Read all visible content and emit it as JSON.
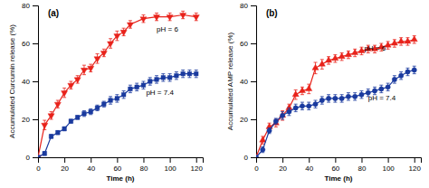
{
  "chart_data": [
    {
      "type": "line",
      "title": "(a)",
      "x_label": "Time (h)",
      "y_label": "Accumulated Curcumin release (%)",
      "xlim": [
        0,
        125
      ],
      "ylim": [
        0,
        80
      ],
      "xticks": [
        0,
        20,
        40,
        60,
        80,
        100,
        120
      ],
      "yticks": [
        0,
        20,
        40,
        60,
        80
      ],
      "series": [
        {
          "name": "pH = 6",
          "color": "#e8221a",
          "marker": "triangle-down",
          "x": [
            0,
            5,
            10,
            15,
            20,
            25,
            30,
            35,
            40,
            45,
            50,
            55,
            60,
            65,
            70,
            80,
            90,
            100,
            110,
            120
          ],
          "values": [
            0,
            17,
            22,
            28,
            34,
            38,
            41,
            46,
            47,
            52,
            55,
            60,
            64,
            66,
            70,
            73,
            74,
            74,
            75,
            74
          ],
          "errors": [
            0,
            2.5,
            2,
            2,
            2.5,
            2,
            2,
            2.5,
            2,
            2.5,
            2,
            2.5,
            2.5,
            2,
            2,
            2,
            2,
            2,
            2,
            2
          ]
        },
        {
          "name": "pH = 7.4",
          "color": "#1a3a9e",
          "marker": "square",
          "x": [
            0,
            5,
            10,
            15,
            20,
            25,
            30,
            35,
            40,
            45,
            50,
            55,
            60,
            65,
            70,
            75,
            80,
            85,
            90,
            95,
            100,
            105,
            110,
            115,
            120
          ],
          "values": [
            0,
            2,
            11,
            13,
            15,
            19,
            21,
            23,
            24,
            26,
            28,
            30,
            31,
            33,
            36,
            37,
            38,
            40,
            41,
            42,
            42,
            43,
            44,
            44,
            44
          ],
          "errors": [
            0,
            1,
            1,
            1,
            1,
            1,
            1,
            1.5,
            1.5,
            1.5,
            1.5,
            2,
            2,
            2,
            2,
            2,
            2,
            2,
            2,
            2,
            2,
            2,
            2,
            2,
            2
          ]
        }
      ],
      "annotations": [
        {
          "text": "pH = 6",
          "x": 90,
          "y": 66
        },
        {
          "text": "pH = 7.4",
          "x": 82,
          "y": 33
        }
      ]
    },
    {
      "type": "line",
      "title": "(b)",
      "x_label": "Time (h)",
      "y_label": "Accumulated AMP release (%)",
      "xlim": [
        0,
        125
      ],
      "ylim": [
        0,
        80
      ],
      "xticks": [
        0,
        20,
        40,
        60,
        80,
        100,
        120
      ],
      "yticks": [
        0,
        20,
        40,
        60,
        80
      ],
      "series": [
        {
          "name": "pH = 6",
          "color": "#e8221a",
          "marker": "triangle-up",
          "x": [
            0,
            5,
            10,
            15,
            20,
            25,
            30,
            35,
            40,
            45,
            50,
            55,
            60,
            65,
            70,
            75,
            80,
            85,
            90,
            95,
            100,
            105,
            110,
            115,
            120
          ],
          "values": [
            0,
            9,
            16,
            18,
            22,
            26,
            33,
            35,
            36,
            47,
            49,
            51,
            52,
            53,
            54,
            55,
            56,
            57,
            57,
            58,
            59,
            60,
            61,
            61,
            62
          ],
          "errors": [
            0,
            2,
            2,
            2,
            2.5,
            2,
            2.5,
            2,
            2.5,
            3,
            2.5,
            2,
            2,
            2,
            2,
            2,
            2,
            2,
            2,
            2,
            2,
            2,
            2,
            2,
            2
          ]
        },
        {
          "name": "pH = 7.4",
          "color": "#1a3a9e",
          "marker": "circle",
          "x": [
            0,
            5,
            10,
            15,
            20,
            25,
            30,
            35,
            40,
            45,
            50,
            55,
            60,
            65,
            70,
            75,
            80,
            85,
            90,
            95,
            100,
            105,
            110,
            115,
            120
          ],
          "values": [
            0,
            4,
            14,
            19,
            22,
            24,
            26,
            27,
            27,
            28,
            30,
            31,
            31,
            31,
            32,
            32,
            33,
            34,
            35,
            36,
            37,
            41,
            43,
            45,
            46
          ],
          "errors": [
            0,
            1.5,
            1.5,
            1.5,
            2,
            2,
            2,
            2,
            2,
            2,
            2,
            2,
            2,
            2,
            2,
            2,
            2,
            2,
            2,
            2,
            2,
            2,
            2,
            2,
            2
          ]
        }
      ],
      "annotations": [
        {
          "text": "pH = 6",
          "x": 82,
          "y": 56
        },
        {
          "text": "pH = 7.4",
          "x": 85,
          "y": 30
        }
      ]
    }
  ]
}
